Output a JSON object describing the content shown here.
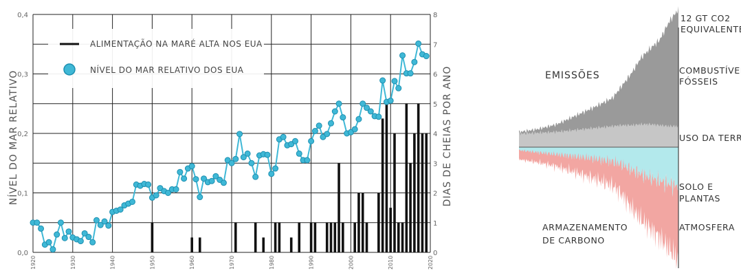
{
  "colors": {
    "flood_bars": "#111111",
    "sea_level_line": "#3fb8d6",
    "sea_level_marker_edge": "#1d8fb0",
    "grid": "#222222",
    "fossil": "#9a9a9a",
    "land": "#c6c6c6",
    "land_sink": "#b3e9ec",
    "atmosphere": "#f2a6a2",
    "ocean_sink": "#c9c6e6"
  },
  "chart_data": [
    {
      "type": "bar+line",
      "legend": {
        "items": [
          "ALIMENTAÇÃO NA MARÉ ALTA NOS EUA",
          "NÍVEL DO MAR RELATIVO DOS EUA"
        ],
        "placement": "top-left"
      },
      "ylabel_left": "NÍVEL DO MAR RELATIVO",
      "ylabel_right": "DIAS DE CHEIAS POR ANO",
      "ylim_left": [
        0,
        0.4
      ],
      "ylim_right": [
        0,
        8
      ],
      "xlim": [
        1920,
        2020
      ],
      "yticks_left": [
        "0,0",
        "0,1",
        "0,2",
        "0,3",
        "0,4"
      ],
      "yticks_right": [
        "0",
        "1",
        "2",
        "3",
        "4",
        "5",
        "6",
        "7",
        "8"
      ],
      "xticks": [
        "1920",
        "1930",
        "1940",
        "1950",
        "1960",
        "1970",
        "1980",
        "1990",
        "2000",
        "2010",
        "2020"
      ],
      "grid": true,
      "series": [
        {
          "name": "ALIMENTAÇÃO NA MARÉ ALTA NOS EUA",
          "kind": "bar",
          "axis": "right",
          "x": [
            1950,
            1960,
            1962,
            1971,
            1976,
            1978,
            1981,
            1982,
            1985,
            1987,
            1990,
            1991,
            1994,
            1995,
            1996,
            1997,
            1998,
            2001,
            2002,
            2003,
            2004,
            2007,
            2008,
            2009,
            2010,
            2011,
            2012,
            2013,
            2014,
            2015,
            2016,
            2017,
            2018,
            2019
          ],
          "values": [
            1,
            0.5,
            0.5,
            1,
            1,
            0.5,
            1,
            1,
            0.5,
            1,
            1,
            1,
            1,
            1,
            1,
            3,
            1,
            1,
            2,
            2,
            1,
            2,
            4.5,
            5,
            1.5,
            4,
            1,
            1,
            5,
            3,
            4,
            5,
            4,
            4
          ]
        },
        {
          "name": "NÍVEL DO MAR RELATIVO DOS EUA",
          "kind": "line",
          "axis": "left",
          "x": [
            1920,
            1921,
            1922,
            1923,
            1924,
            1925,
            1926,
            1927,
            1928,
            1929,
            1930,
            1931,
            1932,
            1933,
            1934,
            1935,
            1936,
            1937,
            1938,
            1939,
            1940,
            1941,
            1942,
            1943,
            1944,
            1945,
            1946,
            1947,
            1948,
            1949,
            1950,
            1951,
            1952,
            1953,
            1954,
            1955,
            1956,
            1957,
            1958,
            1959,
            1960,
            1961,
            1962,
            1963,
            1964,
            1965,
            1966,
            1967,
            1968,
            1969,
            1970,
            1971,
            1972,
            1973,
            1974,
            1975,
            1976,
            1977,
            1978,
            1979,
            1980,
            1981,
            1982,
            1983,
            1984,
            1985,
            1986,
            1987,
            1988,
            1989,
            1990,
            1991,
            1992,
            1993,
            1994,
            1995,
            1996,
            1997,
            1998,
            1999,
            2000,
            2001,
            2002,
            2003,
            2004,
            2005,
            2006,
            2007,
            2008,
            2009,
            2010,
            2011,
            2012,
            2013,
            2014,
            2015,
            2016,
            2017,
            2018,
            2019
          ],
          "values": [
            0.05,
            0.05,
            0.04,
            0.013,
            0.017,
            0.005,
            0.03,
            0.05,
            0.024,
            0.035,
            0.025,
            0.022,
            0.019,
            0.032,
            0.026,
            0.017,
            0.054,
            0.046,
            0.052,
            0.045,
            0.068,
            0.07,
            0.072,
            0.079,
            0.082,
            0.085,
            0.114,
            0.112,
            0.115,
            0.114,
            0.092,
            0.096,
            0.108,
            0.103,
            0.1,
            0.106,
            0.106,
            0.135,
            0.124,
            0.141,
            0.145,
            0.123,
            0.093,
            0.124,
            0.118,
            0.12,
            0.128,
            0.122,
            0.117,
            0.155,
            0.15,
            0.157,
            0.199,
            0.16,
            0.166,
            0.15,
            0.127,
            0.163,
            0.165,
            0.164,
            0.132,
            0.141,
            0.19,
            0.194,
            0.18,
            0.182,
            0.187,
            0.166,
            0.155,
            0.155,
            0.187,
            0.204,
            0.213,
            0.194,
            0.199,
            0.217,
            0.237,
            0.25,
            0.227,
            0.2,
            0.202,
            0.207,
            0.224,
            0.25,
            0.243,
            0.237,
            0.229,
            0.228,
            0.289,
            0.253,
            0.255,
            0.288,
            0.276,
            0.331,
            0.301,
            0.301,
            0.32,
            0.351,
            0.333,
            0.33
          ]
        }
      ]
    },
    {
      "type": "area",
      "title": "EMISSÕES",
      "labels": [
        "12 GT CO2 EQUIVALENTE",
        "COMBUSTÍVEIS FÓSSEIS",
        "USO DA TERRA",
        "SOLO E PLANTAS",
        "ATMOSFERA",
        "ARMAZENAMENTO DE CARBONO"
      ],
      "xlim": [
        1850,
        2020
      ],
      "units": "GT CO2 equivalente",
      "series": [
        {
          "name": "COMBUSTÍVEIS FÓSSEIS",
          "x": [
            1850,
            1870,
            1890,
            1910,
            1930,
            1950,
            1960,
            1970,
            1980,
            1990,
            2000,
            2010,
            2019
          ],
          "values": [
            0.2,
            0.4,
            0.8,
            1.5,
            2.2,
            3.0,
            4.2,
            5.5,
            7.0,
            8.0,
            9.0,
            11.0,
            12.2
          ]
        },
        {
          "name": "USO DA TERRA",
          "x": [
            1850,
            1870,
            1890,
            1910,
            1930,
            1950,
            1960,
            1970,
            1980,
            1990,
            2000,
            2010,
            2019
          ],
          "values": [
            1.4,
            1.5,
            1.6,
            1.8,
            2.0,
            2.2,
            2.3,
            2.3,
            2.4,
            2.4,
            2.3,
            2.2,
            2.2
          ]
        },
        {
          "name": "SOLO E PLANTAS",
          "x": [
            1850,
            1870,
            1890,
            1910,
            1930,
            1950,
            1960,
            1970,
            1980,
            1990,
            2000,
            2010,
            2019
          ],
          "values": [
            -0.3,
            -0.5,
            -0.7,
            -0.9,
            -1.1,
            -1.4,
            -1.7,
            -2.2,
            -2.6,
            -3.0,
            -3.3,
            -3.6,
            -3.8
          ]
        },
        {
          "name": "ATMOSFERA",
          "x": [
            1850,
            1870,
            1890,
            1910,
            1930,
            1950,
            1960,
            1970,
            1980,
            1990,
            2000,
            2010,
            2019
          ],
          "values": [
            -0.9,
            -1.0,
            -1.2,
            -1.6,
            -2.0,
            -2.4,
            -3.0,
            -3.8,
            -4.5,
            -5.0,
            -5.6,
            -6.4,
            -7.2
          ]
        }
      ]
    }
  ]
}
